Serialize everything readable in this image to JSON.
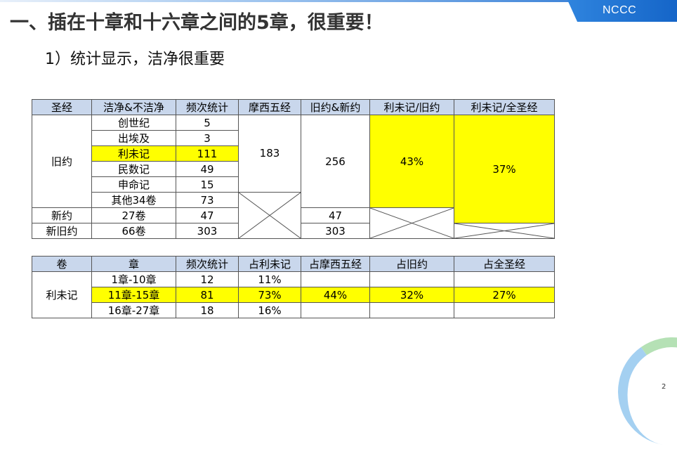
{
  "header": {
    "badge": "NCCC"
  },
  "title": "一、插在十章和十六章之间的5章，很重要！",
  "subtitle": "1）统计显示，洁净很重要",
  "page_number": "2",
  "colors": {
    "highlight": "#ffff00",
    "header_bg": "#c9d7ec",
    "badge": "#1f6fd1"
  },
  "table1": {
    "headers": [
      "圣经",
      "洁净&不洁净",
      "频次统计",
      "摩西五经",
      "旧约&新约",
      "利未记/旧约",
      "利未记/全圣经"
    ],
    "ot_label": "旧约",
    "ot_books": [
      {
        "name": "创世纪",
        "count": "5"
      },
      {
        "name": "出埃及",
        "count": "3"
      },
      {
        "name": "利未记",
        "count": "111"
      },
      {
        "name": "民数记",
        "count": "49"
      },
      {
        "name": "申命记",
        "count": "15"
      },
      {
        "name": "其他34卷",
        "count": "73"
      }
    ],
    "pentateuch_total": "183",
    "ot_total": "256",
    "lev_ot_pct": "43%",
    "lev_bible_pct": "37%",
    "nt": {
      "label": "新约",
      "books": "27卷",
      "count": "47",
      "total": "47"
    },
    "all": {
      "label": "新旧约",
      "books": "66卷",
      "count": "303",
      "total": "303"
    }
  },
  "table2": {
    "headers": [
      "卷",
      "章",
      "频次统计",
      "占利未记",
      "占摩西五经",
      "占旧约",
      "占全圣经"
    ],
    "book_label": "利未记",
    "rows": [
      {
        "chapters": "1章-10章",
        "count": "12",
        "pct_lev": "11%",
        "pct_pent": "",
        "pct_ot": "",
        "pct_bible": ""
      },
      {
        "chapters": "11章-15章",
        "count": "81",
        "pct_lev": "73%",
        "pct_pent": "44%",
        "pct_ot": "32%",
        "pct_bible": "27%"
      },
      {
        "chapters": "16章-27章",
        "count": "18",
        "pct_lev": "16%",
        "pct_pent": "",
        "pct_ot": "",
        "pct_bible": ""
      }
    ]
  }
}
